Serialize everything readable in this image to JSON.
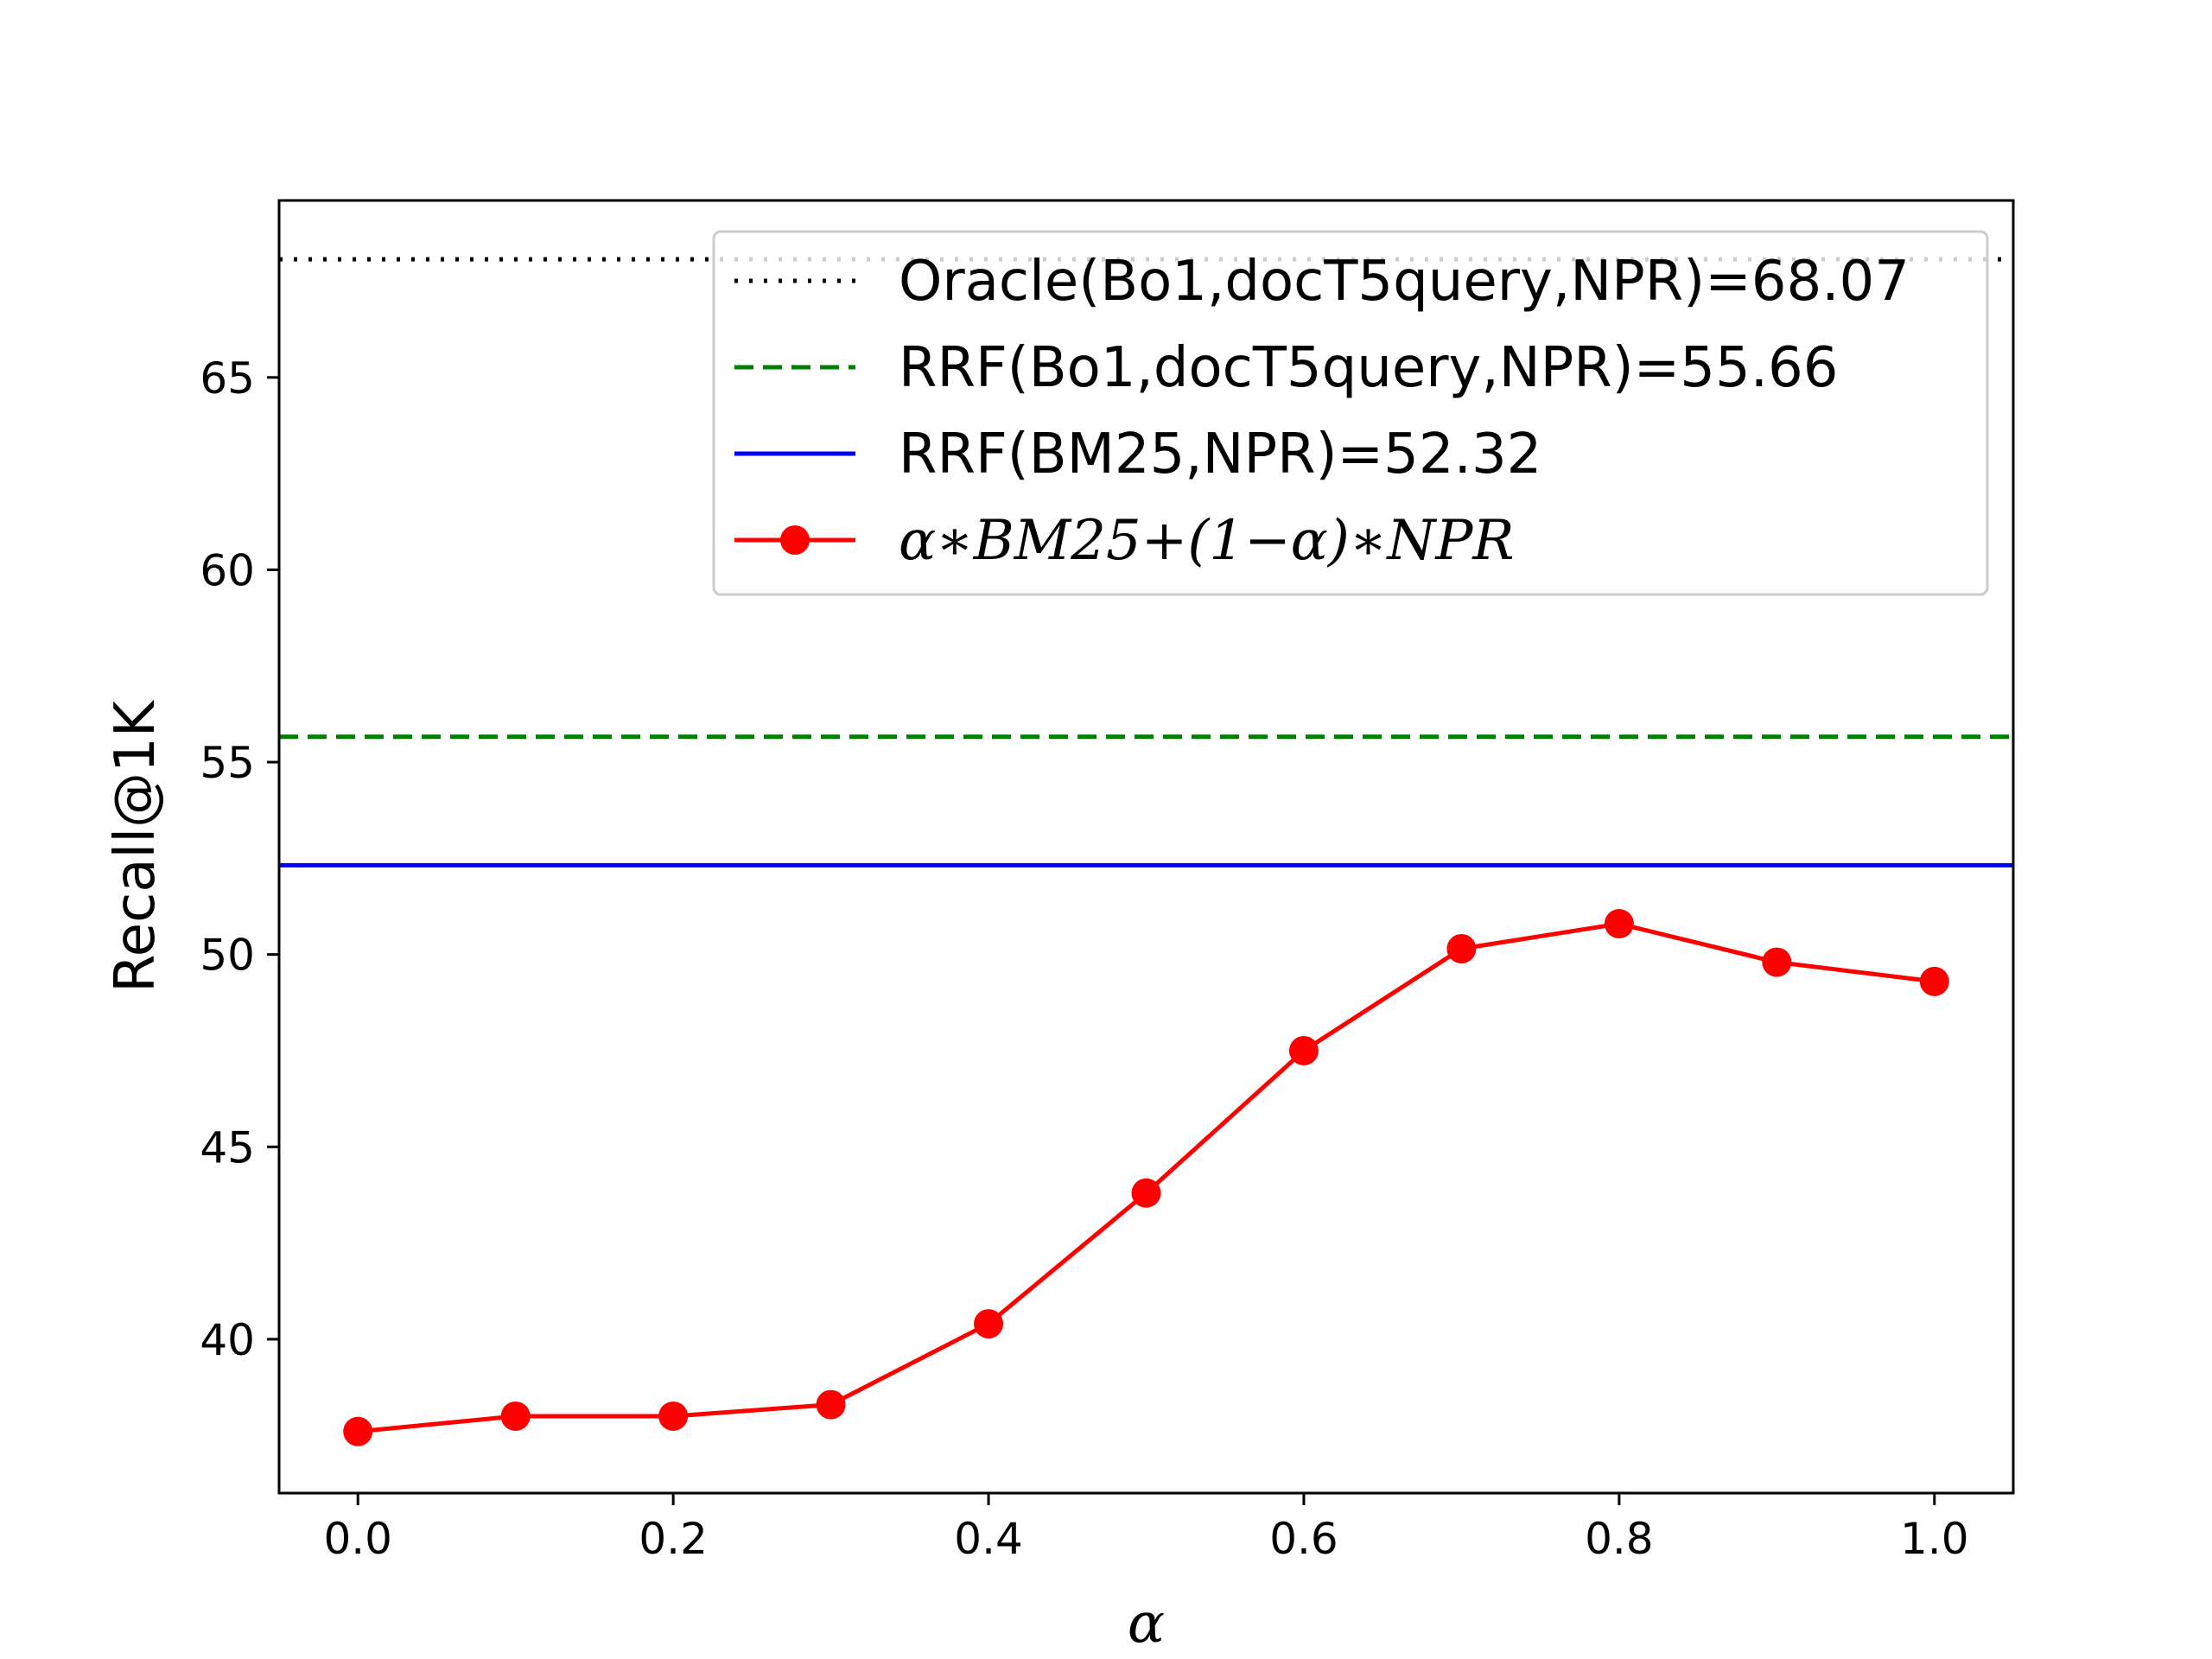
{
  "chart_data": {
    "type": "line",
    "title": "",
    "xlabel": "α",
    "ylabel": "Recall@1K",
    "xlim": [
      -0.05,
      1.05
    ],
    "ylim": [
      36.0,
      69.6
    ],
    "xticks": [
      "0.0",
      "0.2",
      "0.4",
      "0.6",
      "0.8",
      "1.0"
    ],
    "yticks": [
      "40",
      "45",
      "50",
      "55",
      "60",
      "65"
    ],
    "grid": false,
    "legend_position": "upper-right",
    "x": [
      0.0,
      0.1,
      0.2,
      0.3,
      0.4,
      0.5,
      0.6,
      0.7,
      0.8,
      0.9,
      1.0
    ],
    "series": [
      {
        "name": "α∗BM25+(1−α)∗NPR",
        "legend_math": true,
        "color": "#ff0000",
        "style": "solid",
        "marker": "circle",
        "values": [
          37.6,
          38.0,
          38.0,
          38.3,
          40.4,
          43.8,
          47.5,
          50.15,
          50.8,
          49.8,
          49.3
        ]
      }
    ],
    "reference_lines": [
      {
        "name": "Oracle(Bo1,docT5query,NPR)=68.07",
        "value": 68.07,
        "color": "#000000",
        "style": "dotted"
      },
      {
        "name": "RRF(Bo1,docT5query,NPR)=55.66",
        "value": 55.66,
        "color": "#008000",
        "style": "dashed"
      },
      {
        "name": "RRF(BM25,NPR)=52.32",
        "value": 52.32,
        "color": "#0000ff",
        "style": "solid"
      }
    ]
  }
}
